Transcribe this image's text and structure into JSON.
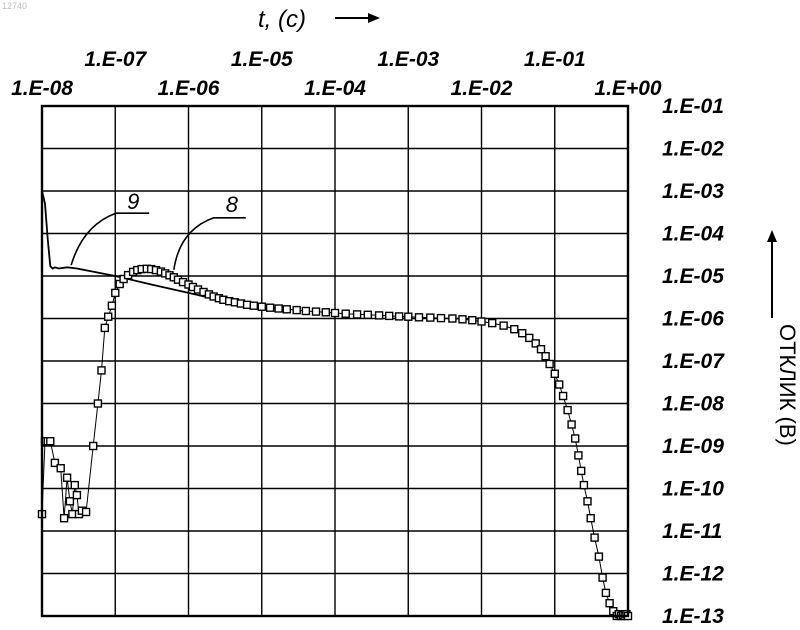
{
  "corner_label": "12740",
  "chart_data": {
    "type": "scatter",
    "title": "",
    "xlabel": "t, (c)",
    "ylabel": "ОТКЛИК (B)",
    "xscale": "log",
    "yscale": "log",
    "xlim": [
      1e-08,
      1
    ],
    "ylim": [
      1e-13,
      0.1
    ],
    "grid": true,
    "x_tick_labels_lower": [
      "1.E-08",
      "1.E-06",
      "1.E-04",
      "1.E-02",
      "1.E+00"
    ],
    "x_tick_labels_upper": [
      "1.E-07",
      "1.E-05",
      "1.E-03",
      "1.E-01"
    ],
    "y_tick_labels": [
      "1.E-01",
      "1.E-02",
      "1.E-03",
      "1.E-04",
      "1.E-05",
      "1.E-06",
      "1.E-07",
      "1.E-08",
      "1.E-09",
      "1.E-10",
      "1.E-11",
      "1.E-12",
      "1.E-13"
    ],
    "annotations": [
      {
        "text": "9",
        "target_series": "line",
        "x": 2.5e-08,
        "y": 1.8e-05
      },
      {
        "text": "8",
        "target_series": "markers",
        "x": 6.3e-07,
        "y": 1.4e-05
      }
    ],
    "series": [
      {
        "kind": "line",
        "x": [
          1e-08,
          1.1e-08,
          1.2e-08,
          1.3e-08,
          1.4e-08,
          1.5e-08,
          1.7e-08,
          2.2e-08,
          3e-08,
          1e-07,
          3e-07,
          1e-06,
          3e-06,
          1e-05
        ],
        "y": [
          0.001,
          0.0005,
          7e-05,
          1.7e-05,
          1.5e-05,
          1.6e-05,
          1.5e-05,
          1.6e-05,
          1.5e-05,
          1e-05,
          6.4e-06,
          4e-06,
          2.6e-06,
          1.7e-06
        ]
      },
      {
        "kind": "markers",
        "x": [
          1e-08,
          1.1e-08,
          1.2e-08,
          1.3e-08,
          1.5e-08,
          1.8e-08,
          2e-08,
          2.2e-08,
          2.4e-08,
          2.6e-08,
          2.8e-08,
          3e-08,
          3.2e-08,
          3.5e-08,
          4e-08,
          5e-08,
          5.8e-08,
          6.5e-08,
          7.2e-08,
          8e-08,
          9e-08,
          1e-07,
          1.15e-07,
          1.3e-07,
          1.5e-07,
          1.75e-07,
          2e-07,
          2.3e-07,
          2.7e-07,
          3.1e-07,
          3.6e-07,
          4.2e-07,
          4.8e-07,
          5.5e-07,
          6.3e-07,
          7.2e-07,
          8.4e-07,
          1e-06,
          1.15e-06,
          1.35e-06,
          1.6e-06,
          1.9e-06,
          2.2e-06,
          2.6e-06,
          3e-06,
          3.6e-06,
          4.3e-06,
          5.2e-06,
          6.3e-06,
          7.8e-06,
          1e-05,
          1.3e-05,
          1.7e-05,
          2.2e-05,
          3e-05,
          4e-05,
          5.5e-05,
          7.5e-05,
          0.0001,
          0.00014,
          0.0002,
          0.00028,
          0.0004,
          0.00055,
          0.00075,
          0.001,
          0.0014,
          0.002,
          0.0028,
          0.004,
          0.0055,
          0.0075,
          0.01,
          0.014,
          0.02,
          0.028,
          0.036,
          0.045,
          0.055,
          0.065,
          0.075,
          0.085,
          0.1,
          0.115,
          0.13,
          0.15,
          0.17,
          0.19,
          0.21,
          0.23,
          0.25,
          0.28,
          0.31,
          0.35,
          0.4,
          0.45,
          0.5,
          0.56,
          0.63,
          0.7,
          0.75,
          0.8,
          0.85,
          0.9,
          0.95,
          1.0
        ],
        "y": [
          2.5e-11,
          1.3e-09,
          1.3e-09,
          1.3e-09,
          4e-10,
          3e-10,
          2e-11,
          1.8e-10,
          5e-11,
          2.5e-11,
          1.2e-10,
          7e-11,
          2.5e-11,
          3e-11,
          2.8e-11,
          1e-09,
          1e-08,
          6e-08,
          6e-07,
          1.1e-06,
          2e-06,
          4e-06,
          6.5e-06,
          8.5e-06,
          1.05e-05,
          1.25e-05,
          1.38e-05,
          1.45e-05,
          1.48e-05,
          1.45e-05,
          1.38e-05,
          1.27e-05,
          1.15e-05,
          1.04e-05,
          9.3e-06,
          8.2e-06,
          7.2e-06,
          6.3e-06,
          5.5e-06,
          4.8e-06,
          4.2e-06,
          3.7e-06,
          3.3e-06,
          3e-06,
          2.75e-06,
          2.55e-06,
          2.4e-06,
          2.25e-06,
          2.1e-06,
          2e-06,
          1.9e-06,
          1.8e-06,
          1.72e-06,
          1.65e-06,
          1.58e-06,
          1.5e-06,
          1.45e-06,
          1.4e-06,
          1.35e-06,
          1.3e-06,
          1.25e-06,
          1.22e-06,
          1.18e-06,
          1.15e-06,
          1.12e-06,
          1.1e-06,
          1.07e-06,
          1.05e-06,
          1.02e-06,
          1e-06,
          9.6e-07,
          9.1e-07,
          8.5e-07,
          7.8e-07,
          6.8e-07,
          5.6e-07,
          4.5e-07,
          3.5e-07,
          2.6e-07,
          1.9e-07,
          1.3e-07,
          8.5e-08,
          5e-08,
          2.8e-08,
          1.5e-08,
          7e-09,
          3.2e-09,
          1.5e-09,
          6e-10,
          2.6e-10,
          1.2e-10,
          5e-11,
          2e-11,
          7e-12,
          2.5e-12,
          8e-13,
          3.5e-13,
          2e-13,
          1.3e-13,
          1e-13,
          1.1e-13,
          1e-13,
          1.05e-13,
          1e-13,
          1.1e-13,
          1e-13
        ]
      }
    ]
  }
}
